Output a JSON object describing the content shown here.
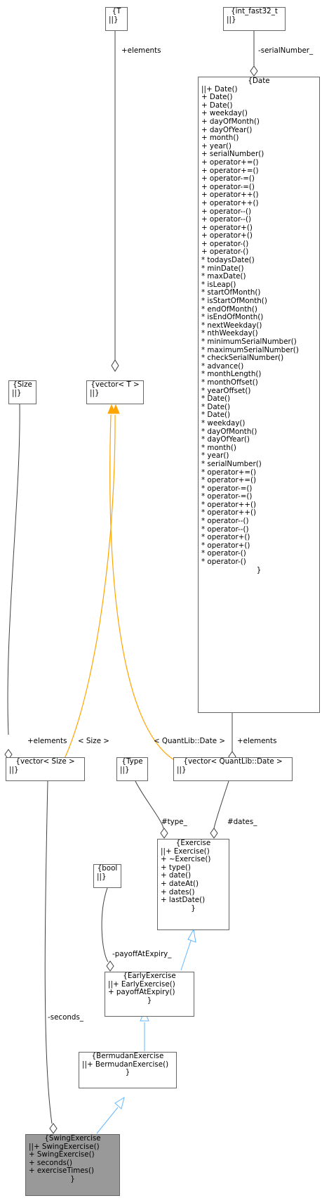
{
  "nodes": {
    "T": {
      "title": "{T",
      "sep": "||}",
      "members": []
    },
    "int_fast32_t": {
      "title": "{int_fast32_t",
      "sep": "||}",
      "members": []
    },
    "Date": {
      "title": "{Date",
      "sep": "||+ Date()",
      "members": [
        "+ Date()",
        "+ Date()",
        "+ weekday()",
        "+ dayOfMonth()",
        "+ dayOfYear()",
        "+ month()",
        "+ year()",
        "+ serialNumber()",
        "+ operator+=()",
        "+ operator+=()",
        "+ operator-=()",
        "+ operator-=()",
        "+ operator++()",
        "+ operator++()",
        "+ operator--()",
        "+ operator--()",
        "+ operator+()",
        "+ operator+()",
        "+ operator-()",
        "+ operator-()",
        "* todaysDate()",
        "* minDate()",
        "* maxDate()",
        "* isLeap()",
        "* startOfMonth()",
        "* isStartOfMonth()",
        "* endOfMonth()",
        "* isEndOfMonth()",
        "* nextWeekday()",
        "* nthWeekday()",
        "* minimumSerialNumber()",
        "* maximumSerialNumber()",
        "* checkSerialNumber()",
        "* advance()",
        "* monthLength()",
        "* monthOffset()",
        "* yearOffset()",
        "* Date()",
        "* Date()",
        "* Date()",
        "* weekday()",
        "* dayOfMonth()",
        "* dayOfYear()",
        "* month()",
        "* year()",
        "* serialNumber()",
        "* operator+=()",
        "* operator+=()",
        "* operator-=()",
        "* operator-=()",
        "* operator++()",
        "* operator++()",
        "* operator--()",
        "* operator--()",
        "* operator+()",
        "* operator+()",
        "* operator-()",
        "* operator-()"
      ],
      "close": "}"
    },
    "Size": {
      "title": "{Size",
      "sep": "||}",
      "members": []
    },
    "vectorT": {
      "title": "{vector< T >",
      "sep": "||}",
      "members": []
    },
    "vectorSize": {
      "title": "{vector< Size >",
      "sep": "||}",
      "members": []
    },
    "Type": {
      "title": "{Type",
      "sep": "||}",
      "members": []
    },
    "vectorDate": {
      "title": "{vector< QuantLib::Date >",
      "sep": "||}",
      "members": []
    },
    "Exercise": {
      "title": "{Exercise",
      "sep": "||+ Exercise()",
      "members": [
        "+ ~Exercise()",
        "+ type()",
        "+ date()",
        "+ dateAt()",
        "+ dates()",
        "+ lastDate()"
      ],
      "close": "}"
    },
    "bool": {
      "title": "{bool",
      "sep": "||}",
      "members": []
    },
    "EarlyExercise": {
      "title": "{EarlyExercise",
      "sep": "||+ EarlyExercise()",
      "members": [
        "+ payoffAtExpiry()"
      ],
      "close": "}"
    },
    "BermudanExercise": {
      "title": "{BermudanExercise",
      "sep": "||+ BermudanExercise()",
      "members": [],
      "close": "}"
    },
    "SwingExercise": {
      "title": "{SwingExercise",
      "sep": "||+ SwingExercise()",
      "members": [
        "+ SwingExercise()",
        "+ seconds()",
        "+ exerciseTimes()"
      ],
      "close": "}"
    }
  },
  "edges": {
    "elements_T": "+elements",
    "serialNumber": "-serialNumber_",
    "elements_size": "+elements",
    "tmpl_size": "< Size >",
    "tmpl_date": "< QuantLib::Date >",
    "elements_date": "+elements",
    "type": "#type_",
    "dates": "#dates_",
    "payoff": "-payoffAtExpiry_",
    "seconds": "-seconds_"
  },
  "colors": {
    "association": "#404040",
    "template": "#FFA500",
    "inheritance": "#63B8FF",
    "highlight_fill": "#999999"
  }
}
